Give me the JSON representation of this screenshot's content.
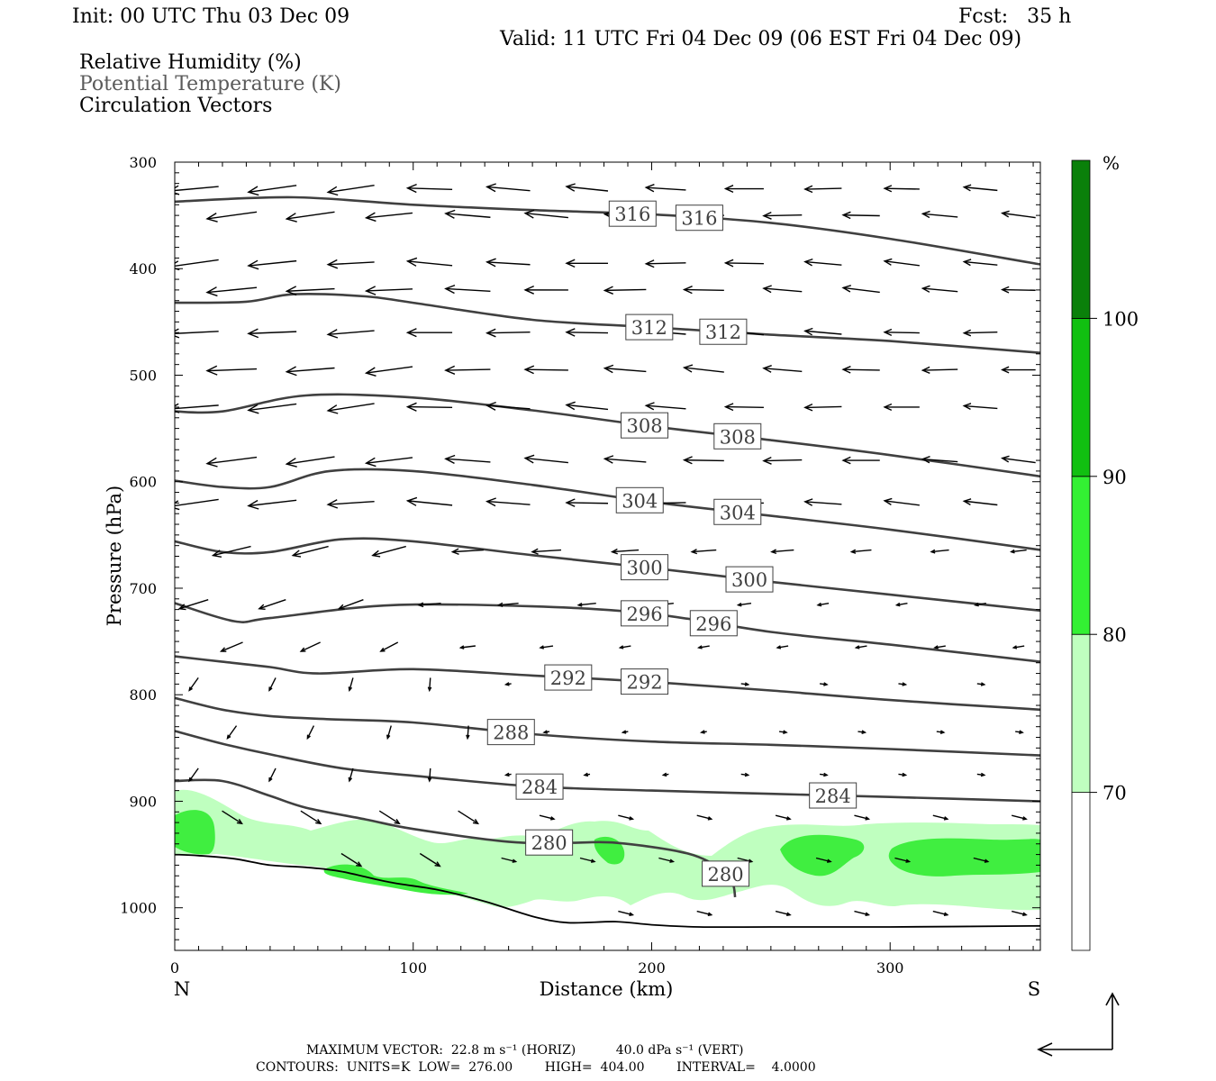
{
  "header": {
    "init": "Init: 00 UTC Thu 03 Dec 09",
    "fcst": "Fcst:   35 h",
    "valid": "Valid: 11 UTC Fri 04 Dec 09 (06 EST Fri 04 Dec 09)",
    "fields": [
      "Relative Humidity (%)",
      "Potential Temperature (K)",
      "Circulation Vectors"
    ]
  },
  "footer": {
    "max_vector_line": "MAXIMUM VECTOR:  22.8 m s⁻¹ (HORIZ)          40.0 dPa s⁻¹ (VERT)",
    "contours_line": "CONTOURS:  UNITS=K  LOW=  276.00        HIGH=  404.00        INTERVAL=    4.0000"
  },
  "chart_data": {
    "type": "cross-section",
    "xlabel": "Distance (km)",
    "ylabel": "Pressure (hPa)",
    "xlim": [
      0,
      363
    ],
    "ylim": [
      1040,
      300
    ],
    "x_ticks": [
      0,
      100,
      200,
      300
    ],
    "y_ticks": [
      300,
      400,
      500,
      600,
      700,
      800,
      900,
      1000
    ],
    "x_end_labels": {
      "left": "N",
      "right": "S"
    },
    "colorbar": {
      "unit_label": "%",
      "levels": [
        70,
        80,
        90,
        100
      ],
      "colors": [
        "#ffffff",
        "#bfffbf",
        "#33f033",
        "#11c011",
        "#0a800a"
      ]
    },
    "theta_contours": [
      {
        "value": 316,
        "labels_at_x": [
          192,
          220
        ],
        "points": [
          [
            0,
            337
          ],
          [
            50,
            333
          ],
          [
            100,
            340
          ],
          [
            150,
            345
          ],
          [
            200,
            349
          ],
          [
            250,
            357
          ],
          [
            300,
            372
          ],
          [
            363,
            396
          ]
        ]
      },
      {
        "value": 312,
        "labels_at_x": [
          199,
          230
        ],
        "points": [
          [
            0,
            432
          ],
          [
            30,
            431
          ],
          [
            50,
            424
          ],
          [
            80,
            426
          ],
          [
            100,
            432
          ],
          [
            150,
            448
          ],
          [
            200,
            455
          ],
          [
            250,
            462
          ],
          [
            300,
            468
          ],
          [
            363,
            479
          ]
        ]
      },
      {
        "value": 308,
        "labels_at_x": [
          197,
          236
        ],
        "points": [
          [
            0,
            534
          ],
          [
            20,
            534
          ],
          [
            55,
            519
          ],
          [
            100,
            521
          ],
          [
            150,
            533
          ],
          [
            200,
            548
          ],
          [
            250,
            561
          ],
          [
            300,
            575
          ],
          [
            363,
            595
          ]
        ]
      },
      {
        "value": 304,
        "labels_at_x": [
          195,
          236
        ],
        "points": [
          [
            0,
            599
          ],
          [
            20,
            605
          ],
          [
            40,
            605
          ],
          [
            65,
            590
          ],
          [
            100,
            590
          ],
          [
            150,
            603
          ],
          [
            200,
            619
          ],
          [
            250,
            632
          ],
          [
            300,
            645
          ],
          [
            363,
            664
          ]
        ]
      },
      {
        "value": 300,
        "labels_at_x": [
          197,
          241
        ],
        "points": [
          [
            0,
            656
          ],
          [
            20,
            666
          ],
          [
            40,
            666
          ],
          [
            70,
            654
          ],
          [
            100,
            656
          ],
          [
            150,
            669
          ],
          [
            200,
            681
          ],
          [
            250,
            694
          ],
          [
            300,
            706
          ],
          [
            363,
            721
          ]
        ]
      },
      {
        "value": 296,
        "labels_at_x": [
          197,
          226
        ],
        "points": [
          [
            0,
            714
          ],
          [
            25,
            731
          ],
          [
            40,
            728
          ],
          [
            90,
            716
          ],
          [
            150,
            717
          ],
          [
            200,
            724
          ],
          [
            250,
            741
          ],
          [
            300,
            753
          ],
          [
            363,
            769
          ]
        ]
      },
      {
        "value": 292,
        "labels_at_x": [
          165,
          197
        ],
        "points": [
          [
            0,
            764
          ],
          [
            20,
            769
          ],
          [
            40,
            774
          ],
          [
            60,
            780
          ],
          [
            100,
            776
          ],
          [
            150,
            782
          ],
          [
            200,
            788
          ],
          [
            250,
            796
          ],
          [
            300,
            805
          ],
          [
            363,
            814
          ]
        ]
      },
      {
        "value": 288,
        "labels_at_x": [
          141
        ],
        "points": [
          [
            0,
            803
          ],
          [
            20,
            814
          ],
          [
            40,
            820
          ],
          [
            65,
            823
          ],
          [
            100,
            826
          ],
          [
            150,
            837
          ],
          [
            200,
            844
          ],
          [
            250,
            847
          ],
          [
            300,
            851
          ],
          [
            363,
            857
          ]
        ]
      },
      {
        "value": 284,
        "labels_at_x": [
          153,
          276
        ],
        "points": [
          [
            0,
            834
          ],
          [
            20,
            846
          ],
          [
            40,
            856
          ],
          [
            70,
            869
          ],
          [
            100,
            876
          ],
          [
            150,
            886
          ],
          [
            200,
            890
          ],
          [
            250,
            893
          ],
          [
            300,
            896
          ],
          [
            363,
            900
          ]
        ]
      },
      {
        "value": 280,
        "labels_at_x": [
          157,
          231
        ],
        "points": [
          [
            0,
            881
          ],
          [
            20,
            881
          ],
          [
            40,
            895
          ],
          [
            55,
            906
          ],
          [
            80,
            917
          ],
          [
            100,
            926
          ],
          [
            140,
            938
          ],
          [
            165,
            939
          ],
          [
            185,
            939
          ],
          [
            215,
            949
          ],
          [
            230,
            965
          ],
          [
            234,
            977
          ],
          [
            235,
            990
          ]
        ]
      }
    ],
    "terrain_pressure": [
      [
        0,
        950
      ],
      [
        10,
        951
      ],
      [
        25,
        954
      ],
      [
        40,
        960
      ],
      [
        55,
        962
      ],
      [
        70,
        966
      ],
      [
        90,
        976
      ],
      [
        110,
        983
      ],
      [
        130,
        994
      ],
      [
        150,
        1008
      ],
      [
        165,
        1014
      ],
      [
        185,
        1013
      ],
      [
        200,
        1016
      ],
      [
        220,
        1018
      ],
      [
        250,
        1018
      ],
      [
        300,
        1018
      ],
      [
        363,
        1017
      ]
    ]
  }
}
